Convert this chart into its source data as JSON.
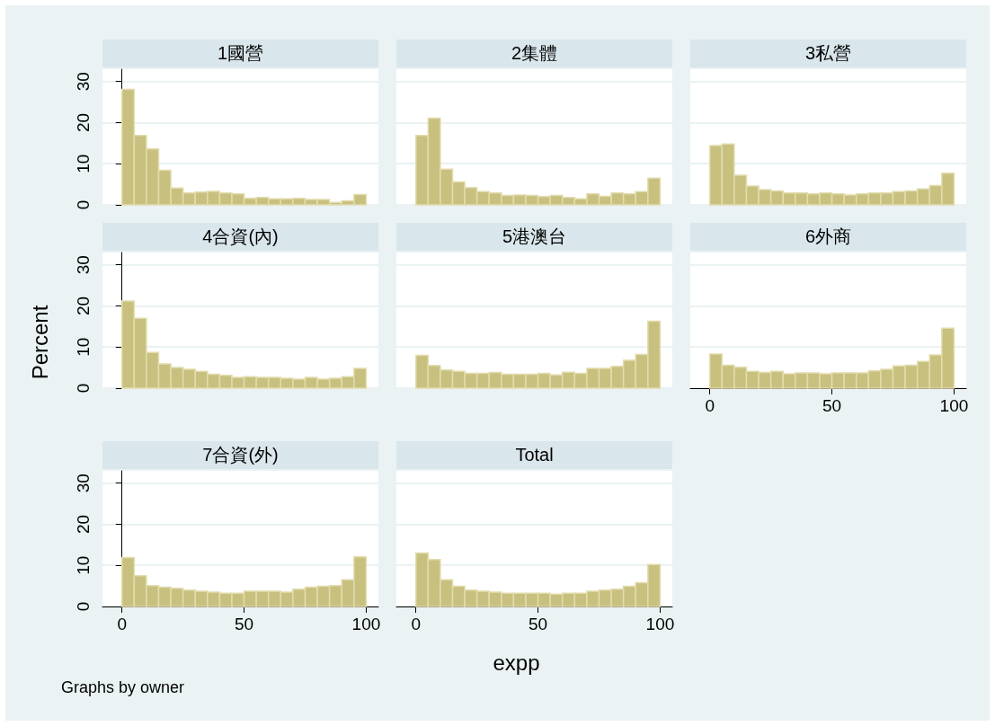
{
  "chart_data": [
    {
      "type": "histogram",
      "title": "1國營",
      "bins": [
        0,
        5,
        10,
        15,
        20,
        25,
        30,
        35,
        40,
        45,
        50,
        55,
        60,
        65,
        70,
        75,
        80,
        85,
        90,
        95,
        100
      ],
      "values": [
        28.1,
        16.9,
        13.6,
        8.4,
        4.1,
        2.9,
        3.1,
        3.3,
        2.9,
        2.7,
        1.6,
        1.8,
        1.5,
        1.5,
        1.6,
        1.3,
        1.3,
        0.6,
        1.0,
        2.5
      ],
      "color": "#c8c07e",
      "xlim": [
        -8,
        105
      ],
      "xticks": [
        0,
        50,
        100
      ],
      "ylim": [
        0,
        33
      ],
      "yticks": [
        0,
        10,
        20,
        30
      ],
      "grid": "y",
      "tick_labels": "y"
    },
    {
      "type": "histogram",
      "title": "2集體",
      "bins": [
        0,
        5,
        10,
        15,
        20,
        25,
        30,
        35,
        40,
        45,
        50,
        55,
        60,
        65,
        70,
        75,
        80,
        85,
        90,
        95,
        100
      ],
      "values": [
        16.9,
        21.1,
        8.7,
        5.6,
        4.2,
        3.2,
        2.9,
        2.3,
        2.4,
        2.3,
        2.0,
        2.3,
        1.8,
        1.5,
        2.7,
        2.1,
        2.9,
        2.7,
        3.2,
        6.5
      ],
      "color": "#c8c07e",
      "xlim": [
        -8,
        105
      ],
      "xticks": [
        0,
        50,
        100
      ],
      "ylim": [
        0,
        33
      ],
      "yticks": [
        0,
        10,
        20,
        30
      ],
      "grid": "y",
      "tick_labels": false
    },
    {
      "type": "histogram",
      "title": "3私營",
      "bins": [
        0,
        5,
        10,
        15,
        20,
        25,
        30,
        35,
        40,
        45,
        50,
        55,
        60,
        65,
        70,
        75,
        80,
        85,
        90,
        95,
        100
      ],
      "values": [
        14.4,
        14.8,
        7.2,
        4.6,
        3.7,
        3.4,
        2.9,
        2.9,
        2.7,
        2.9,
        2.7,
        2.4,
        2.7,
        2.9,
        2.9,
        3.2,
        3.4,
        3.9,
        4.7,
        7.7
      ],
      "color": "#c8c07e",
      "xlim": [
        -8,
        105
      ],
      "xticks": [
        0,
        50,
        100
      ],
      "ylim": [
        0,
        33
      ],
      "yticks": [
        0,
        10,
        20,
        30
      ],
      "grid": "y",
      "tick_labels": false
    },
    {
      "type": "histogram",
      "title": "4合資(內)",
      "ylabel": "Percent",
      "bins": [
        0,
        5,
        10,
        15,
        20,
        25,
        30,
        35,
        40,
        45,
        50,
        55,
        60,
        65,
        70,
        75,
        80,
        85,
        90,
        95,
        100
      ],
      "values": [
        21.2,
        17.0,
        8.7,
        5.9,
        5.0,
        4.6,
        4.1,
        3.4,
        3.1,
        2.6,
        2.8,
        2.6,
        2.6,
        2.4,
        2.2,
        2.6,
        2.2,
        2.4,
        2.8,
        4.8
      ],
      "color": "#c8c07e",
      "xlim": [
        -8,
        105
      ],
      "xticks": [
        0,
        50,
        100
      ],
      "ylim": [
        0,
        33
      ],
      "yticks": [
        0,
        10,
        20,
        30
      ],
      "grid": "y",
      "tick_labels": "y"
    },
    {
      "type": "histogram",
      "title": "5港澳台",
      "bins": [
        0,
        5,
        10,
        15,
        20,
        25,
        30,
        35,
        40,
        45,
        50,
        55,
        60,
        65,
        70,
        75,
        80,
        85,
        90,
        95,
        100
      ],
      "values": [
        8.0,
        5.5,
        4.4,
        4.1,
        3.6,
        3.6,
        3.8,
        3.4,
        3.4,
        3.4,
        3.6,
        3.2,
        3.9,
        3.6,
        4.8,
        4.8,
        5.3,
        6.8,
        8.2,
        16.3
      ],
      "color": "#c8c07e",
      "xlim": [
        -8,
        105
      ],
      "xticks": [
        0,
        50,
        100
      ],
      "ylim": [
        0,
        33
      ],
      "yticks": [
        0,
        10,
        20,
        30
      ],
      "grid": "y",
      "tick_labels": false
    },
    {
      "type": "histogram",
      "title": "6外商",
      "bins": [
        0,
        5,
        10,
        15,
        20,
        25,
        30,
        35,
        40,
        45,
        50,
        55,
        60,
        65,
        70,
        75,
        80,
        85,
        90,
        95,
        100
      ],
      "values": [
        8.3,
        5.6,
        5.1,
        4.1,
        3.8,
        4.1,
        3.5,
        3.7,
        3.7,
        3.5,
        3.7,
        3.7,
        3.7,
        4.2,
        4.6,
        5.4,
        5.6,
        6.5,
        8.1,
        14.6
      ],
      "color": "#c8c07e",
      "xlim": [
        -8,
        105
      ],
      "xticks": [
        0,
        50,
        100
      ],
      "ylim": [
        0,
        33
      ],
      "yticks": [
        0,
        10,
        20,
        30
      ],
      "grid": "y",
      "tick_labels": "x"
    },
    {
      "type": "histogram",
      "title": "7合資(外)",
      "bins": [
        0,
        5,
        10,
        15,
        20,
        25,
        30,
        35,
        40,
        45,
        50,
        55,
        60,
        65,
        70,
        75,
        80,
        85,
        90,
        95,
        100
      ],
      "values": [
        11.9,
        7.5,
        5.1,
        4.7,
        4.4,
        4.0,
        3.7,
        3.5,
        3.2,
        3.2,
        3.7,
        3.7,
        3.7,
        3.5,
        4.2,
        4.7,
        4.9,
        5.1,
        6.5,
        12.1
      ],
      "color": "#c8c07e",
      "xlim": [
        -8,
        105
      ],
      "xticks": [
        0,
        50,
        100
      ],
      "ylim": [
        0,
        33
      ],
      "yticks": [
        0,
        10,
        20,
        30
      ],
      "grid": "y"
    },
    {
      "type": "histogram",
      "title": "Total",
      "xlabel": "expp",
      "annotations": [
        "Graphs by owner"
      ],
      "bins": [
        0,
        5,
        10,
        15,
        20,
        25,
        30,
        35,
        40,
        45,
        50,
        55,
        60,
        65,
        70,
        75,
        80,
        85,
        90,
        95,
        100
      ],
      "values": [
        13.0,
        11.4,
        6.5,
        4.9,
        4.0,
        3.7,
        3.5,
        3.2,
        3.2,
        3.2,
        3.2,
        3.0,
        3.2,
        3.2,
        3.7,
        4.0,
        4.2,
        4.9,
        5.8,
        10.2
      ],
      "color": "#c8c07e",
      "xlim": [
        -8,
        105
      ],
      "xticks": [
        0,
        50,
        100
      ],
      "ylim": [
        0,
        33
      ],
      "yticks": [
        0,
        10,
        20,
        30
      ],
      "grid": "y",
      "tick_labels": "x"
    }
  ]
}
